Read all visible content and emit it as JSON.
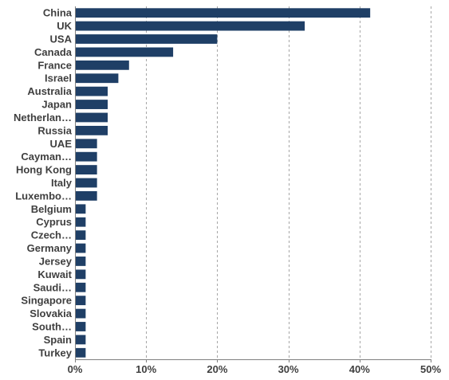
{
  "chart_data": {
    "type": "bar",
    "orientation": "horizontal",
    "title": "",
    "xlabel": "",
    "ylabel": "",
    "categories": [
      "China",
      "UK",
      "USA",
      "Canada",
      "France",
      "Israel",
      "Australia",
      "Japan",
      "Netherlan…",
      "Russia",
      "UAE",
      "Cayman…",
      "Hong Kong",
      "Italy",
      "Luxembo…",
      "Belgium",
      "Cyprus",
      "Czech…",
      "Germany",
      "Jersey",
      "Kuwait",
      "Saudi…",
      "Singapore",
      "Slovakia",
      "South…",
      "Spain",
      "Turkey"
    ],
    "values": [
      41.5,
      32.3,
      20.0,
      13.8,
      7.6,
      6.1,
      4.6,
      4.6,
      4.6,
      4.6,
      3.1,
      3.1,
      3.1,
      3.1,
      3.1,
      1.5,
      1.5,
      1.5,
      1.5,
      1.5,
      1.5,
      1.5,
      1.5,
      1.5,
      1.5,
      1.5,
      1.5
    ],
    "xlim": [
      0,
      50
    ],
    "x_ticks": [
      0,
      10,
      20,
      30,
      40,
      50
    ],
    "x_tick_labels": [
      "0%",
      "10%",
      "20%",
      "30%",
      "40%",
      "50%"
    ],
    "grid": "vertical dashed",
    "legend": "none",
    "bar_color": "#1f3f66",
    "grid_color": "#a6a6a6",
    "axis_color": "#808080",
    "label_color": "#3f3f3f"
  }
}
